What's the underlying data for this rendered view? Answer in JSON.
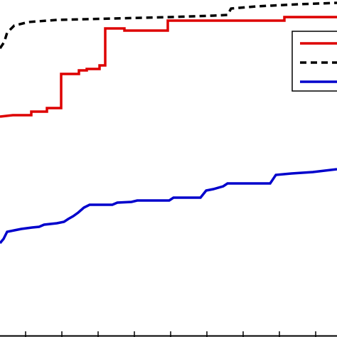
{
  "chart_data": {
    "type": "line",
    "title": "",
    "xlabel": "",
    "ylabel": "",
    "xlim": [
      0,
      474
    ],
    "ylim": [
      0,
      474
    ],
    "grid": false,
    "legend_placement": "top-right",
    "series": [
      {
        "color": "#000000",
        "style": "dashed",
        "points": [
          [
            0,
            406
          ],
          [
            6,
            415
          ],
          [
            10,
            428
          ],
          [
            20,
            438
          ],
          [
            40,
            443
          ],
          [
            80,
            446
          ],
          [
            160,
            448
          ],
          [
            240,
            450
          ],
          [
            300,
            452
          ],
          [
            320,
            453
          ],
          [
            325,
            462
          ],
          [
            360,
            465
          ],
          [
            420,
            468
          ],
          [
            474,
            470
          ]
        ]
      },
      {
        "color": "#dd0000",
        "style": "solid",
        "points": [
          [
            0,
            310
          ],
          [
            18,
            312
          ],
          [
            44,
            312
          ],
          [
            44,
            317
          ],
          [
            66,
            317
          ],
          [
            66,
            322
          ],
          [
            86,
            322
          ],
          [
            86,
            370
          ],
          [
            111,
            370
          ],
          [
            111,
            375
          ],
          [
            122,
            375
          ],
          [
            122,
            377
          ],
          [
            140,
            377
          ],
          [
            140,
            382
          ],
          [
            148,
            382
          ],
          [
            148,
            434
          ],
          [
            175,
            434
          ],
          [
            175,
            431
          ],
          [
            236,
            431
          ],
          [
            236,
            445
          ],
          [
            400,
            445
          ],
          [
            400,
            450
          ],
          [
            474,
            450
          ]
        ]
      },
      {
        "color": "#0000cc",
        "style": "solid",
        "points": [
          [
            0,
            132
          ],
          [
            5,
            138
          ],
          [
            10,
            148
          ],
          [
            20,
            150
          ],
          [
            30,
            152
          ],
          [
            45,
            154
          ],
          [
            55,
            155
          ],
          [
            62,
            158
          ],
          [
            80,
            160
          ],
          [
            90,
            162
          ],
          [
            96,
            166
          ],
          [
            103,
            170
          ],
          [
            110,
            175
          ],
          [
            118,
            182
          ],
          [
            126,
            186
          ],
          [
            158,
            186
          ],
          [
            165,
            189
          ],
          [
            185,
            190
          ],
          [
            193,
            192
          ],
          [
            238,
            192
          ],
          [
            244,
            196
          ],
          [
            282,
            196
          ],
          [
            290,
            206
          ],
          [
            300,
            208
          ],
          [
            314,
            212
          ],
          [
            320,
            216
          ],
          [
            380,
            216
          ],
          [
            388,
            228
          ],
          [
            410,
            230
          ],
          [
            440,
            232
          ],
          [
            474,
            236
          ]
        ]
      }
    ],
    "legend": [
      {
        "color": "#dd0000",
        "style": "solid"
      },
      {
        "color": "#000000",
        "style": "dashed"
      },
      {
        "color": "#0000cc",
        "style": "solid"
      }
    ],
    "x_ticks": [
      36,
      87,
      138,
      189,
      240,
      291,
      342,
      393,
      444
    ]
  }
}
